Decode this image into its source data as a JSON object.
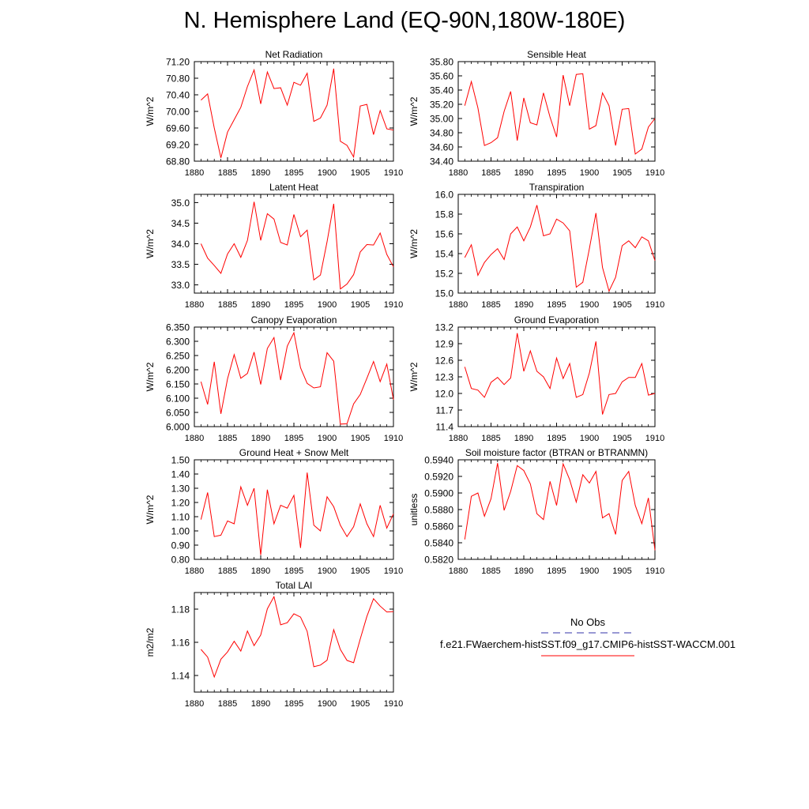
{
  "page": {
    "title": "N. Hemisphere Land (EQ-90N,180W-180E)"
  },
  "legend": {
    "items": [
      {
        "label": "No Obs",
        "color": "#3333aa",
        "dash": true
      },
      {
        "label": "f.e21.FWaerchem-histSST.f09_g17.CMIP6-histSST-WACCM.001",
        "color": "#ff0000",
        "dash": false
      }
    ]
  },
  "chart_data": [
    {
      "type": "line",
      "title": "Net Radiation",
      "ylabel": "W/m^2",
      "x": [
        1881,
        1882,
        1883,
        1884,
        1885,
        1886,
        1887,
        1888,
        1889,
        1890,
        1891,
        1892,
        1893,
        1894,
        1895,
        1896,
        1897,
        1898,
        1899,
        1900,
        1901,
        1902,
        1903,
        1904,
        1905,
        1906,
        1907,
        1908,
        1909,
        1910
      ],
      "xlim": [
        1880,
        1910
      ],
      "xticks": [
        1880,
        1885,
        1890,
        1895,
        1900,
        1905,
        1910
      ],
      "ylim": [
        68.8,
        71.2
      ],
      "yticks": [
        "68.80",
        "69.20",
        "69.60",
        "70.00",
        "70.40",
        "70.80",
        "71.20"
      ],
      "series": [
        {
          "color": "#ff0000",
          "values": [
            70.27,
            70.42,
            69.6,
            68.88,
            69.5,
            69.8,
            70.1,
            70.6,
            71.0,
            70.18,
            70.95,
            70.55,
            70.57,
            70.15,
            70.7,
            70.63,
            70.92,
            69.76,
            69.84,
            70.15,
            71.03,
            69.28,
            69.18,
            68.9,
            70.13,
            70.17,
            69.44,
            70.02,
            69.58,
            69.55
          ]
        }
      ]
    },
    {
      "type": "line",
      "title": "Sensible Heat",
      "ylabel": "W/m^2",
      "x": [
        1881,
        1882,
        1883,
        1884,
        1885,
        1886,
        1887,
        1888,
        1889,
        1890,
        1891,
        1892,
        1893,
        1894,
        1895,
        1896,
        1897,
        1898,
        1899,
        1900,
        1901,
        1902,
        1903,
        1904,
        1905,
        1906,
        1907,
        1908,
        1909,
        1910
      ],
      "xlim": [
        1880,
        1910
      ],
      "xticks": [
        1880,
        1885,
        1890,
        1895,
        1900,
        1905,
        1910
      ],
      "ylim": [
        34.4,
        35.8
      ],
      "yticks": [
        "34.40",
        "34.60",
        "34.80",
        "35.00",
        "35.20",
        "35.40",
        "35.60",
        "35.80"
      ],
      "series": [
        {
          "color": "#ff0000",
          "values": [
            35.18,
            35.52,
            35.15,
            34.62,
            34.66,
            34.73,
            35.1,
            35.38,
            34.69,
            35.29,
            34.94,
            34.91,
            35.36,
            35.02,
            34.74,
            35.61,
            35.18,
            35.62,
            35.63,
            34.85,
            34.9,
            35.36,
            35.18,
            34.62,
            35.13,
            35.14,
            34.5,
            34.57,
            34.88,
            35.0
          ]
        }
      ]
    },
    {
      "type": "line",
      "title": "Latent Heat",
      "ylabel": "W/m^2",
      "x": [
        1881,
        1882,
        1883,
        1884,
        1885,
        1886,
        1887,
        1888,
        1889,
        1890,
        1891,
        1892,
        1893,
        1894,
        1895,
        1896,
        1897,
        1898,
        1899,
        1900,
        1901,
        1902,
        1903,
        1904,
        1905,
        1906,
        1907,
        1908,
        1909,
        1910
      ],
      "xlim": [
        1880,
        1910
      ],
      "xticks": [
        1880,
        1885,
        1890,
        1895,
        1900,
        1905,
        1910
      ],
      "ylim": [
        32.8,
        35.2
      ],
      "yticks": [
        "33.0",
        "33.5",
        "34.0",
        "34.5",
        "35.0"
      ],
      "series": [
        {
          "color": "#ff0000",
          "values": [
            34.0,
            33.65,
            33.47,
            33.28,
            33.75,
            34.0,
            33.67,
            34.08,
            35.02,
            34.08,
            34.73,
            34.6,
            34.03,
            33.97,
            34.71,
            34.17,
            34.33,
            33.12,
            33.24,
            34.05,
            34.97,
            32.9,
            33.02,
            33.25,
            33.8,
            33.98,
            33.97,
            34.26,
            33.74,
            33.44
          ]
        }
      ]
    },
    {
      "type": "line",
      "title": "Transpiration",
      "ylabel": "W/m^2",
      "x": [
        1881,
        1882,
        1883,
        1884,
        1885,
        1886,
        1887,
        1888,
        1889,
        1890,
        1891,
        1892,
        1893,
        1894,
        1895,
        1896,
        1897,
        1898,
        1899,
        1900,
        1901,
        1902,
        1903,
        1904,
        1905,
        1906,
        1907,
        1908,
        1909,
        1910
      ],
      "xlim": [
        1880,
        1910
      ],
      "xticks": [
        1880,
        1885,
        1890,
        1895,
        1900,
        1905,
        1910
      ],
      "ylim": [
        15.0,
        16.0
      ],
      "yticks": [
        "15.0",
        "15.2",
        "15.4",
        "15.6",
        "15.8",
        "16.0"
      ],
      "series": [
        {
          "color": "#ff0000",
          "values": [
            15.36,
            15.49,
            15.18,
            15.31,
            15.39,
            15.45,
            15.34,
            15.6,
            15.67,
            15.53,
            15.67,
            15.89,
            15.58,
            15.6,
            15.75,
            15.71,
            15.63,
            15.06,
            15.11,
            15.45,
            15.81,
            15.26,
            15.02,
            15.16,
            15.48,
            15.53,
            15.46,
            15.57,
            15.53,
            15.33
          ]
        }
      ]
    },
    {
      "type": "line",
      "title": "Canopy Evaporation",
      "ylabel": "W/m^2",
      "x": [
        1881,
        1882,
        1883,
        1884,
        1885,
        1886,
        1887,
        1888,
        1889,
        1890,
        1891,
        1892,
        1893,
        1894,
        1895,
        1896,
        1897,
        1898,
        1899,
        1900,
        1901,
        1902,
        1903,
        1904,
        1905,
        1906,
        1907,
        1908,
        1909,
        1910
      ],
      "xlim": [
        1880,
        1910
      ],
      "xticks": [
        1880,
        1885,
        1890,
        1895,
        1900,
        1905,
        1910
      ],
      "ylim": [
        6.0,
        6.35
      ],
      "yticks": [
        "6.000",
        "6.050",
        "6.100",
        "6.150",
        "6.200",
        "6.250",
        "6.300",
        "6.350"
      ],
      "series": [
        {
          "color": "#ff0000",
          "values": [
            6.158,
            6.078,
            6.228,
            6.045,
            6.168,
            6.253,
            6.17,
            6.187,
            6.262,
            6.148,
            6.275,
            6.313,
            6.164,
            6.283,
            6.33,
            6.207,
            6.152,
            6.136,
            6.14,
            6.26,
            6.23,
            6.009,
            6.01,
            6.08,
            6.113,
            6.17,
            6.229,
            6.158,
            6.22,
            6.095
          ]
        }
      ]
    },
    {
      "type": "line",
      "title": "Ground Evaporation",
      "ylabel": "W/m^2",
      "x": [
        1881,
        1882,
        1883,
        1884,
        1885,
        1886,
        1887,
        1888,
        1889,
        1890,
        1891,
        1892,
        1893,
        1894,
        1895,
        1896,
        1897,
        1898,
        1899,
        1900,
        1901,
        1902,
        1903,
        1904,
        1905,
        1906,
        1907,
        1908,
        1909,
        1910
      ],
      "xlim": [
        1880,
        1910
      ],
      "xticks": [
        1880,
        1885,
        1890,
        1895,
        1900,
        1905,
        1910
      ],
      "ylim": [
        11.4,
        13.2
      ],
      "yticks": [
        "11.4",
        "11.7",
        "12.0",
        "12.3",
        "12.6",
        "12.9",
        "13.2"
      ],
      "series": [
        {
          "color": "#ff0000",
          "values": [
            12.48,
            12.09,
            12.06,
            11.93,
            12.2,
            12.29,
            12.16,
            12.28,
            13.09,
            12.4,
            12.77,
            12.4,
            12.3,
            12.09,
            12.64,
            12.27,
            12.54,
            11.93,
            11.98,
            12.37,
            12.94,
            11.62,
            11.98,
            12.0,
            12.21,
            12.29,
            12.29,
            12.54,
            11.97,
            12.0
          ]
        }
      ]
    },
    {
      "type": "line",
      "title": "Ground Heat + Snow Melt",
      "ylabel": "W/m^2",
      "x": [
        1881,
        1882,
        1883,
        1884,
        1885,
        1886,
        1887,
        1888,
        1889,
        1890,
        1891,
        1892,
        1893,
        1894,
        1895,
        1896,
        1897,
        1898,
        1899,
        1900,
        1901,
        1902,
        1903,
        1904,
        1905,
        1906,
        1907,
        1908,
        1909,
        1910
      ],
      "xlim": [
        1880,
        1910
      ],
      "xticks": [
        1880,
        1885,
        1890,
        1895,
        1900,
        1905,
        1910
      ],
      "ylim": [
        0.8,
        1.5
      ],
      "yticks": [
        "0.80",
        "0.90",
        "1.00",
        "1.10",
        "1.20",
        "1.30",
        "1.40",
        "1.50"
      ],
      "series": [
        {
          "color": "#ff0000",
          "values": [
            1.08,
            1.27,
            0.96,
            0.97,
            1.07,
            1.05,
            1.31,
            1.18,
            1.3,
            0.83,
            1.29,
            1.05,
            1.18,
            1.16,
            1.25,
            0.88,
            1.41,
            1.04,
            1.0,
            1.24,
            1.17,
            1.04,
            0.96,
            1.03,
            1.19,
            1.05,
            0.96,
            1.18,
            1.02,
            1.12
          ]
        }
      ]
    },
    {
      "type": "line",
      "title": "Soil moisture factor (BTRAN or BTRANMN)",
      "ylabel": "unitless",
      "x": [
        1881,
        1882,
        1883,
        1884,
        1885,
        1886,
        1887,
        1888,
        1889,
        1890,
        1891,
        1892,
        1893,
        1894,
        1895,
        1896,
        1897,
        1898,
        1899,
        1900,
        1901,
        1902,
        1903,
        1904,
        1905,
        1906,
        1907,
        1908,
        1909,
        1910
      ],
      "xlim": [
        1880,
        1910
      ],
      "xticks": [
        1880,
        1885,
        1890,
        1895,
        1900,
        1905,
        1910
      ],
      "ylim": [
        0.582,
        0.594
      ],
      "yticks": [
        "0.5820",
        "0.5840",
        "0.5860",
        "0.5880",
        "0.5900",
        "0.5920",
        "0.5940"
      ],
      "series": [
        {
          "color": "#ff0000",
          "values": [
            0.5844,
            0.5896,
            0.59,
            0.5872,
            0.5893,
            0.5936,
            0.5879,
            0.5902,
            0.5933,
            0.5927,
            0.5911,
            0.5875,
            0.5868,
            0.5914,
            0.5885,
            0.5935,
            0.5916,
            0.5889,
            0.5922,
            0.5912,
            0.5926,
            0.587,
            0.5875,
            0.585,
            0.5915,
            0.5926,
            0.5885,
            0.5863,
            0.5894,
            0.5831
          ]
        }
      ]
    },
    {
      "type": "line",
      "title": "Total LAI",
      "ylabel": "m2/m2",
      "x": [
        1881,
        1882,
        1883,
        1884,
        1885,
        1886,
        1887,
        1888,
        1889,
        1890,
        1891,
        1892,
        1893,
        1894,
        1895,
        1896,
        1897,
        1898,
        1899,
        1900,
        1901,
        1902,
        1903,
        1904,
        1905,
        1906,
        1907,
        1908,
        1909,
        1910
      ],
      "xlim": [
        1880,
        1910
      ],
      "xticks": [
        1880,
        1885,
        1890,
        1895,
        1900,
        1905,
        1910
      ],
      "ylim": [
        1.13,
        1.19
      ],
      "yticks": [
        "1.14",
        "1.16",
        "1.18"
      ],
      "series": [
        {
          "color": "#ff0000",
          "values": [
            1.1557,
            1.1511,
            1.1391,
            1.1498,
            1.1542,
            1.1606,
            1.1547,
            1.1668,
            1.158,
            1.1644,
            1.1802,
            1.1875,
            1.1705,
            1.1718,
            1.1772,
            1.1752,
            1.1666,
            1.1453,
            1.1463,
            1.1492,
            1.1676,
            1.1557,
            1.1491,
            1.1477,
            1.162,
            1.1756,
            1.1863,
            1.1818,
            1.1783,
            1.1785
          ]
        }
      ]
    }
  ]
}
